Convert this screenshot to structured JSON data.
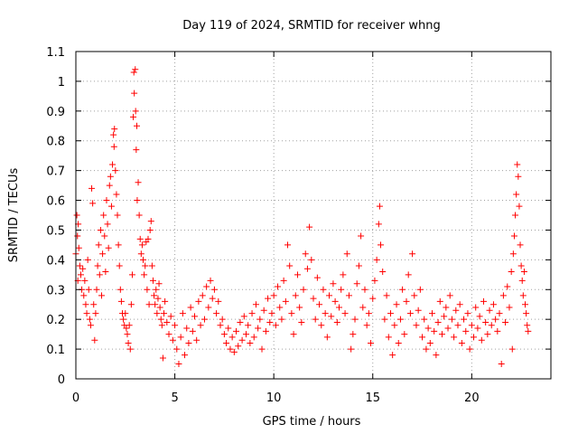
{
  "chart_data": {
    "type": "scatter",
    "title": "Day 119 of 2024, SRMTID for receiver whng",
    "xlabel": "GPS time / hours",
    "ylabel": "SRMTID / TECUs",
    "xlim": [
      0,
      24
    ],
    "ylim": [
      0,
      1.1
    ],
    "xticks": [
      0,
      5,
      10,
      15,
      20
    ],
    "xtick_labels": [
      "0",
      "5",
      "10",
      "15",
      "20"
    ],
    "yticks": [
      0,
      0.1,
      0.2,
      0.3,
      0.4,
      0.5,
      0.6,
      0.7,
      0.8,
      0.9,
      1,
      1.1
    ],
    "ytick_labels": [
      "0",
      "0.1",
      "0.2",
      "0.3",
      "0.4",
      "0.5",
      "0.6",
      "0.7",
      "0.8",
      "0.9",
      "1",
      "1.1"
    ],
    "grid": true,
    "marker": "+",
    "color": "#ff0000",
    "series": [
      {
        "name": "SRMTID",
        "points": [
          [
            0.0,
            0.42
          ],
          [
            0.05,
            0.55
          ],
          [
            0.08,
            0.48
          ],
          [
            0.1,
            0.33
          ],
          [
            0.12,
            0.52
          ],
          [
            0.15,
            0.44
          ],
          [
            0.2,
            0.38
          ],
          [
            0.25,
            0.35
          ],
          [
            0.3,
            0.3
          ],
          [
            0.35,
            0.37
          ],
          [
            0.4,
            0.28
          ],
          [
            0.45,
            0.33
          ],
          [
            0.5,
            0.25
          ],
          [
            0.55,
            0.22
          ],
          [
            0.6,
            0.4
          ],
          [
            0.65,
            0.3
          ],
          [
            0.7,
            0.2
          ],
          [
            0.75,
            0.18
          ],
          [
            0.8,
            0.64
          ],
          [
            0.85,
            0.59
          ],
          [
            0.9,
            0.25
          ],
          [
            0.95,
            0.13
          ],
          [
            1.0,
            0.22
          ],
          [
            1.05,
            0.3
          ],
          [
            1.1,
            0.38
          ],
          [
            1.15,
            0.45
          ],
          [
            1.2,
            0.35
          ],
          [
            1.25,
            0.5
          ],
          [
            1.3,
            0.28
          ],
          [
            1.35,
            0.42
          ],
          [
            1.4,
            0.55
          ],
          [
            1.45,
            0.48
          ],
          [
            1.5,
            0.36
          ],
          [
            1.55,
            0.6
          ],
          [
            1.6,
            0.52
          ],
          [
            1.65,
            0.44
          ],
          [
            1.7,
            0.65
          ],
          [
            1.75,
            0.68
          ],
          [
            1.8,
            0.58
          ],
          [
            1.85,
            0.72
          ],
          [
            1.9,
            0.82
          ],
          [
            1.93,
            0.78
          ],
          [
            1.95,
            0.84
          ],
          [
            2.0,
            0.7
          ],
          [
            2.05,
            0.62
          ],
          [
            2.1,
            0.55
          ],
          [
            2.15,
            0.45
          ],
          [
            2.2,
            0.38
          ],
          [
            2.25,
            0.3
          ],
          [
            2.3,
            0.26
          ],
          [
            2.35,
            0.22
          ],
          [
            2.4,
            0.2
          ],
          [
            2.45,
            0.18
          ],
          [
            2.5,
            0.22
          ],
          [
            2.55,
            0.17
          ],
          [
            2.6,
            0.15
          ],
          [
            2.65,
            0.12
          ],
          [
            2.7,
            0.18
          ],
          [
            2.75,
            0.1
          ],
          [
            2.8,
            0.25
          ],
          [
            2.85,
            0.35
          ],
          [
            2.9,
            0.88
          ],
          [
            2.93,
            1.03
          ],
          [
            2.95,
            0.96
          ],
          [
            3.0,
            1.04
          ],
          [
            3.02,
            0.9
          ],
          [
            3.05,
            0.77
          ],
          [
            3.08,
            0.85
          ],
          [
            3.1,
            0.6
          ],
          [
            3.15,
            0.66
          ],
          [
            3.2,
            0.55
          ],
          [
            3.25,
            0.47
          ],
          [
            3.3,
            0.42
          ],
          [
            3.35,
            0.45
          ],
          [
            3.4,
            0.4
          ],
          [
            3.45,
            0.35
          ],
          [
            3.5,
            0.38
          ],
          [
            3.55,
            0.46
          ],
          [
            3.6,
            0.3
          ],
          [
            3.65,
            0.47
          ],
          [
            3.7,
            0.25
          ],
          [
            3.75,
            0.5
          ],
          [
            3.8,
            0.53
          ],
          [
            3.85,
            0.38
          ],
          [
            3.9,
            0.33
          ],
          [
            3.95,
            0.28
          ],
          [
            4.0,
            0.25
          ],
          [
            4.05,
            0.3
          ],
          [
            4.1,
            0.22
          ],
          [
            4.15,
            0.27
          ],
          [
            4.2,
            0.32
          ],
          [
            4.25,
            0.24
          ],
          [
            4.3,
            0.2
          ],
          [
            4.35,
            0.18
          ],
          [
            4.4,
            0.07
          ],
          [
            4.45,
            0.22
          ],
          [
            4.5,
            0.26
          ],
          [
            4.6,
            0.19
          ],
          [
            4.7,
            0.15
          ],
          [
            4.8,
            0.21
          ],
          [
            4.9,
            0.13
          ],
          [
            5.0,
            0.18
          ],
          [
            5.1,
            0.1
          ],
          [
            5.2,
            0.05
          ],
          [
            5.3,
            0.14
          ],
          [
            5.4,
            0.22
          ],
          [
            5.5,
            0.08
          ],
          [
            5.6,
            0.17
          ],
          [
            5.7,
            0.12
          ],
          [
            5.8,
            0.24
          ],
          [
            5.9,
            0.16
          ],
          [
            6.0,
            0.21
          ],
          [
            6.1,
            0.13
          ],
          [
            6.2,
            0.26
          ],
          [
            6.3,
            0.18
          ],
          [
            6.4,
            0.28
          ],
          [
            6.5,
            0.2
          ],
          [
            6.6,
            0.31
          ],
          [
            6.7,
            0.24
          ],
          [
            6.8,
            0.33
          ],
          [
            6.9,
            0.27
          ],
          [
            7.0,
            0.3
          ],
          [
            7.1,
            0.22
          ],
          [
            7.2,
            0.26
          ],
          [
            7.3,
            0.18
          ],
          [
            7.4,
            0.2
          ],
          [
            7.5,
            0.15
          ],
          [
            7.6,
            0.12
          ],
          [
            7.7,
            0.17
          ],
          [
            7.8,
            0.1
          ],
          [
            7.9,
            0.14
          ],
          [
            8.0,
            0.09
          ],
          [
            8.1,
            0.16
          ],
          [
            8.2,
            0.11
          ],
          [
            8.3,
            0.19
          ],
          [
            8.4,
            0.13
          ],
          [
            8.5,
            0.21
          ],
          [
            8.6,
            0.15
          ],
          [
            8.7,
            0.18
          ],
          [
            8.8,
            0.12
          ],
          [
            8.9,
            0.22
          ],
          [
            9.0,
            0.14
          ],
          [
            9.1,
            0.25
          ],
          [
            9.2,
            0.17
          ],
          [
            9.3,
            0.2
          ],
          [
            9.4,
            0.1
          ],
          [
            9.5,
            0.23
          ],
          [
            9.6,
            0.16
          ],
          [
            9.7,
            0.27
          ],
          [
            9.8,
            0.19
          ],
          [
            9.9,
            0.22
          ],
          [
            10.0,
            0.28
          ],
          [
            10.1,
            0.18
          ],
          [
            10.2,
            0.31
          ],
          [
            10.3,
            0.24
          ],
          [
            10.4,
            0.2
          ],
          [
            10.5,
            0.33
          ],
          [
            10.6,
            0.26
          ],
          [
            10.7,
            0.45
          ],
          [
            10.8,
            0.38
          ],
          [
            10.9,
            0.22
          ],
          [
            11.0,
            0.15
          ],
          [
            11.1,
            0.28
          ],
          [
            11.2,
            0.35
          ],
          [
            11.3,
            0.24
          ],
          [
            11.4,
            0.19
          ],
          [
            11.5,
            0.3
          ],
          [
            11.6,
            0.42
          ],
          [
            11.7,
            0.37
          ],
          [
            11.8,
            0.51
          ],
          [
            11.9,
            0.4
          ],
          [
            12.0,
            0.27
          ],
          [
            12.1,
            0.2
          ],
          [
            12.2,
            0.34
          ],
          [
            12.3,
            0.25
          ],
          [
            12.4,
            0.18
          ],
          [
            12.5,
            0.3
          ],
          [
            12.6,
            0.22
          ],
          [
            12.7,
            0.14
          ],
          [
            12.8,
            0.28
          ],
          [
            12.9,
            0.21
          ],
          [
            13.0,
            0.32
          ],
          [
            13.1,
            0.26
          ],
          [
            13.2,
            0.19
          ],
          [
            13.3,
            0.24
          ],
          [
            13.4,
            0.3
          ],
          [
            13.5,
            0.35
          ],
          [
            13.6,
            0.22
          ],
          [
            13.7,
            0.42
          ],
          [
            13.8,
            0.28
          ],
          [
            13.9,
            0.1
          ],
          [
            14.0,
            0.15
          ],
          [
            14.1,
            0.2
          ],
          [
            14.2,
            0.32
          ],
          [
            14.3,
            0.38
          ],
          [
            14.4,
            0.48
          ],
          [
            14.5,
            0.24
          ],
          [
            14.6,
            0.3
          ],
          [
            14.7,
            0.18
          ],
          [
            14.8,
            0.22
          ],
          [
            14.9,
            0.12
          ],
          [
            15.0,
            0.27
          ],
          [
            15.1,
            0.33
          ],
          [
            15.2,
            0.4
          ],
          [
            15.3,
            0.52
          ],
          [
            15.35,
            0.58
          ],
          [
            15.4,
            0.45
          ],
          [
            15.5,
            0.36
          ],
          [
            15.6,
            0.2
          ],
          [
            15.7,
            0.28
          ],
          [
            15.8,
            0.14
          ],
          [
            15.9,
            0.22
          ],
          [
            16.0,
            0.08
          ],
          [
            16.1,
            0.18
          ],
          [
            16.2,
            0.25
          ],
          [
            16.3,
            0.12
          ],
          [
            16.4,
            0.2
          ],
          [
            16.5,
            0.3
          ],
          [
            16.6,
            0.15
          ],
          [
            16.7,
            0.26
          ],
          [
            16.8,
            0.35
          ],
          [
            16.9,
            0.22
          ],
          [
            17.0,
            0.42
          ],
          [
            17.1,
            0.28
          ],
          [
            17.2,
            0.18
          ],
          [
            17.3,
            0.23
          ],
          [
            17.4,
            0.3
          ],
          [
            17.5,
            0.14
          ],
          [
            17.6,
            0.2
          ],
          [
            17.7,
            0.1
          ],
          [
            17.8,
            0.17
          ],
          [
            17.9,
            0.12
          ],
          [
            18.0,
            0.22
          ],
          [
            18.1,
            0.16
          ],
          [
            18.2,
            0.08
          ],
          [
            18.3,
            0.19
          ],
          [
            18.4,
            0.26
          ],
          [
            18.5,
            0.15
          ],
          [
            18.6,
            0.21
          ],
          [
            18.7,
            0.24
          ],
          [
            18.8,
            0.17
          ],
          [
            18.9,
            0.28
          ],
          [
            19.0,
            0.2
          ],
          [
            19.1,
            0.14
          ],
          [
            19.2,
            0.23
          ],
          [
            19.3,
            0.18
          ],
          [
            19.4,
            0.25
          ],
          [
            19.5,
            0.12
          ],
          [
            19.6,
            0.2
          ],
          [
            19.7,
            0.16
          ],
          [
            19.8,
            0.22
          ],
          [
            19.9,
            0.1
          ],
          [
            20.0,
            0.18
          ],
          [
            20.1,
            0.14
          ],
          [
            20.2,
            0.24
          ],
          [
            20.3,
            0.17
          ],
          [
            20.4,
            0.21
          ],
          [
            20.5,
            0.13
          ],
          [
            20.6,
            0.26
          ],
          [
            20.7,
            0.19
          ],
          [
            20.8,
            0.15
          ],
          [
            20.9,
            0.23
          ],
          [
            21.0,
            0.18
          ],
          [
            21.1,
            0.25
          ],
          [
            21.2,
            0.2
          ],
          [
            21.3,
            0.16
          ],
          [
            21.4,
            0.22
          ],
          [
            21.5,
            0.05
          ],
          [
            21.6,
            0.28
          ],
          [
            21.7,
            0.19
          ],
          [
            21.8,
            0.31
          ],
          [
            21.9,
            0.24
          ],
          [
            22.0,
            0.36
          ],
          [
            22.05,
            0.1
          ],
          [
            22.1,
            0.42
          ],
          [
            22.15,
            0.48
          ],
          [
            22.2,
            0.55
          ],
          [
            22.25,
            0.62
          ],
          [
            22.3,
            0.72
          ],
          [
            22.35,
            0.68
          ],
          [
            22.4,
            0.58
          ],
          [
            22.45,
            0.45
          ],
          [
            22.5,
            0.38
          ],
          [
            22.55,
            0.33
          ],
          [
            22.6,
            0.28
          ],
          [
            22.65,
            0.36
          ],
          [
            22.7,
            0.25
          ],
          [
            22.75,
            0.22
          ],
          [
            22.8,
            0.18
          ],
          [
            22.85,
            0.16
          ]
        ]
      }
    ]
  }
}
